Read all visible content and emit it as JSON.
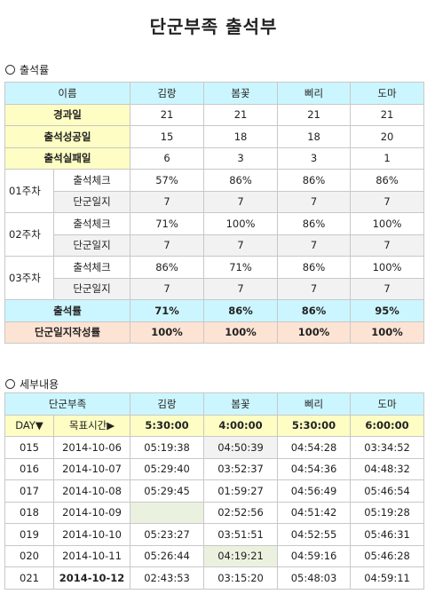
{
  "title": "단군부족 출석부",
  "section1": {
    "label": "출석률"
  },
  "section2": {
    "label": "세부내용"
  },
  "attendance": {
    "header": [
      "이름",
      "김랑",
      "봄꽃",
      "삐리",
      "도마"
    ],
    "elapsed": {
      "label": "경과일",
      "values": [
        "21",
        "21",
        "21",
        "21"
      ]
    },
    "success": {
      "label": "출석성공일",
      "values": [
        "15",
        "18",
        "18",
        "20"
      ]
    },
    "fail": {
      "label": "출석실패일",
      "values": [
        "6",
        "3",
        "3",
        "1"
      ]
    },
    "weeks": [
      {
        "label": "01주차",
        "check": [
          "57%",
          "86%",
          "86%",
          "86%"
        ],
        "diary": [
          "7",
          "7",
          "7",
          "7"
        ]
      },
      {
        "label": "02주차",
        "check": [
          "71%",
          "100%",
          "86%",
          "100%"
        ],
        "diary": [
          "7",
          "7",
          "7",
          "7"
        ]
      },
      {
        "label": "03주차",
        "check": [
          "86%",
          "71%",
          "86%",
          "100%"
        ],
        "diary": [
          "7",
          "7",
          "7",
          "7"
        ]
      }
    ],
    "check_label": "출석체크",
    "diary_label": "단군일지",
    "rate": {
      "label": "출석률",
      "values": [
        "71%",
        "86%",
        "86%",
        "95%"
      ]
    },
    "diary_rate": {
      "label": "단군일지작성률",
      "values": [
        "100%",
        "100%",
        "100%",
        "100%"
      ]
    }
  },
  "detail": {
    "header": [
      "단군부족",
      "김랑",
      "봄꽃",
      "삐리",
      "도마"
    ],
    "day_label": "DAY▼",
    "target_label": "목표시간▶",
    "targets": [
      "5:30:00",
      "4:00:00",
      "5:30:00",
      "6:00:00"
    ],
    "rows": [
      {
        "day": "015",
        "date": "2014-10-06",
        "times": [
          "05:19:38",
          "04:50:39",
          "04:54:28",
          "03:34:52"
        ]
      },
      {
        "day": "016",
        "date": "2014-10-07",
        "times": [
          "05:29:40",
          "03:52:37",
          "04:54:36",
          "04:48:32"
        ]
      },
      {
        "day": "017",
        "date": "2014-10-08",
        "times": [
          "05:29:45",
          "01:59:27",
          "04:56:49",
          "05:46:54"
        ]
      },
      {
        "day": "018",
        "date": "2014-10-09",
        "times": [
          "",
          "02:52:56",
          "04:51:42",
          "05:19:28"
        ]
      },
      {
        "day": "019",
        "date": "2014-10-10",
        "times": [
          "05:23:27",
          "03:51:51",
          "04:52:55",
          "05:46:31"
        ]
      },
      {
        "day": "020",
        "date": "2014-10-11",
        "times": [
          "05:26:44",
          "04:19:21",
          "04:59:16",
          "05:46:28"
        ]
      },
      {
        "day": "021",
        "date": "2014-10-12",
        "times": [
          "02:43:53",
          "03:15:20",
          "05:48:03",
          "04:59:11"
        ]
      }
    ]
  }
}
